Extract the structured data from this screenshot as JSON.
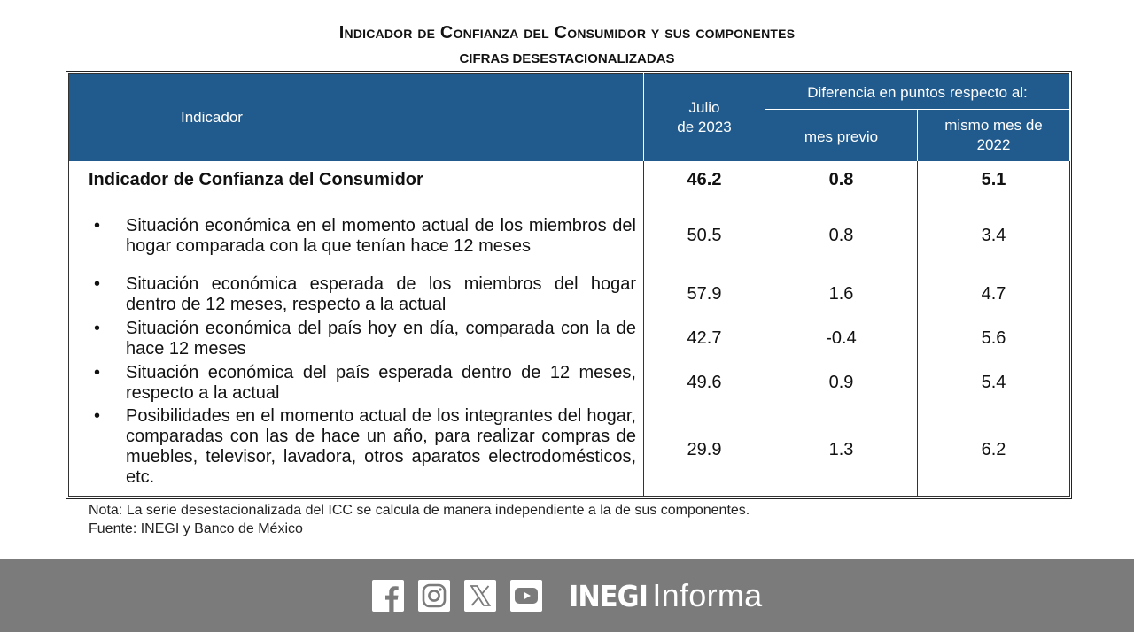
{
  "title": "Indicador de Confianza del Consumidor y sus componentes",
  "subtitle": "CIFRAS DESESTACIONALIZADAS",
  "table": {
    "headers": {
      "indicator": "Indicador",
      "period_line1": "Julio",
      "period_line2": "de 2023",
      "diff_group": "Diferencia en puntos respecto al:",
      "prev_month": "mes previo",
      "same_month_line1": "mismo mes de",
      "same_month_line2": "2022"
    },
    "main_row": {
      "label": "Indicador de Confianza del Consumidor",
      "value": "46.2",
      "prev_month": "0.8",
      "same_month": "5.1"
    },
    "rows": [
      {
        "bullet": "•",
        "label": "Situación económica en el momento actual de los miembros del hogar comparada con la que tenían hace 12 meses",
        "value": "50.5",
        "prev_month": "0.8",
        "same_month": "3.4"
      },
      {
        "bullet": "•",
        "label": "Situación económica esperada de los miembros del hogar dentro de 12 meses, respecto a la actual",
        "value": "57.9",
        "prev_month": "1.6",
        "same_month": "4.7"
      },
      {
        "bullet": "•",
        "label": "Situación económica del país hoy en día, comparada con la de hace 12 meses",
        "value": "42.7",
        "prev_month": "-0.4",
        "same_month": "5.6"
      },
      {
        "bullet": "•",
        "label": "Situación económica del país esperada dentro de 12 meses, respecto a la actual",
        "value": "49.6",
        "prev_month": "0.9",
        "same_month": "5.4"
      },
      {
        "bullet": "•",
        "label": "Posibilidades en el momento actual de los integrantes del hogar, comparadas con las de hace un año, para realizar compras de muebles, televisor, lavadora, otros aparatos electrodomésticos, etc.",
        "value": "29.9",
        "prev_month": "1.3",
        "same_month": "6.2"
      }
    ]
  },
  "notes": {
    "note": "Nota: La serie desestacionalizada del ICC se calcula de manera independiente a la de sus componentes.",
    "source": "Fuente: INEGI y Banco de México"
  },
  "footer": {
    "icons": [
      "facebook-icon",
      "instagram-icon",
      "x-icon",
      "youtube-icon"
    ],
    "brand_bold": "INEGI",
    "brand_light": "Informa"
  },
  "colors": {
    "header_blue": "#215a8c",
    "footer_gray": "#7b7b7b"
  }
}
